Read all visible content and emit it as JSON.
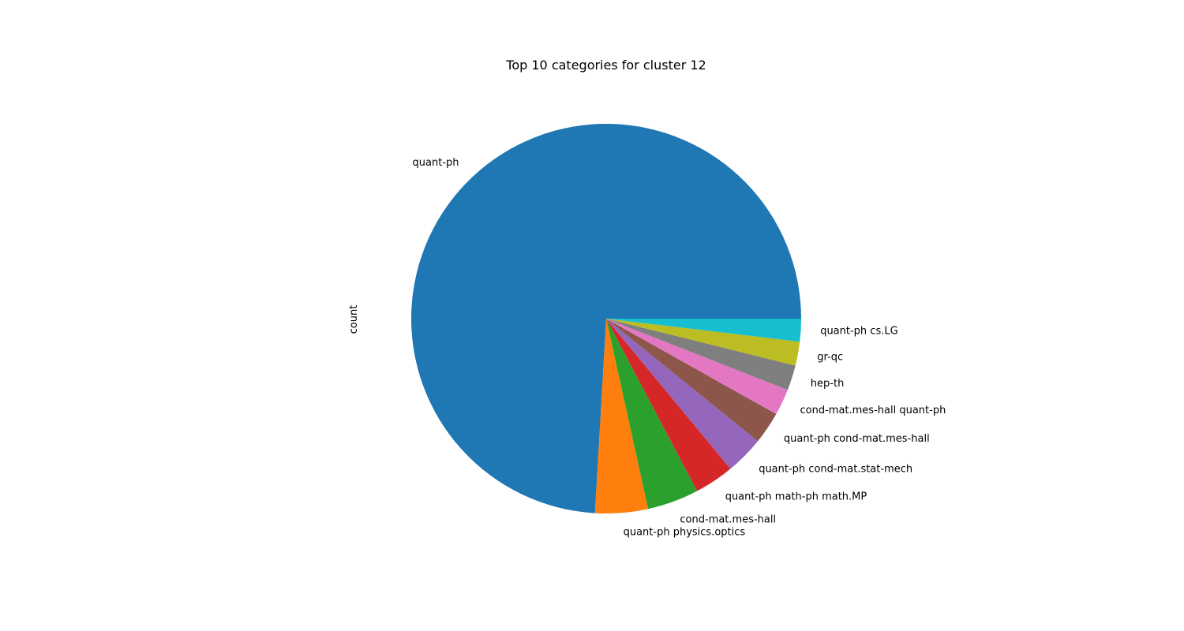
{
  "chart_data": {
    "type": "pie",
    "title": "Top 10 categories for cluster 12",
    "ylabel": "count",
    "start_angle_deg": 0,
    "direction": "counterclockwise",
    "slices": [
      {
        "label": "quant-ph",
        "value": 746,
        "color": "#1f77b4"
      },
      {
        "label": "quant-ph physics.optics",
        "value": 44,
        "color": "#ff7f0e"
      },
      {
        "label": "cond-mat.mes-hall",
        "value": 43,
        "color": "#2ca02c"
      },
      {
        "label": "quant-ph math-ph math.MP",
        "value": 33,
        "color": "#d62728"
      },
      {
        "label": "quant-ph cond-mat.stat-mech",
        "value": 32,
        "color": "#9467bd"
      },
      {
        "label": "quant-ph cond-mat.mes-hall",
        "value": 27,
        "color": "#8c564b"
      },
      {
        "label": "cond-mat.mes-hall quant-ph",
        "value": 22,
        "color": "#e377c2"
      },
      {
        "label": "hep-th",
        "value": 21,
        "color": "#7f7f7f"
      },
      {
        "label": "gr-qc",
        "value": 20,
        "color": "#bcbd22"
      },
      {
        "label": "quant-ph cs.LG",
        "value": 19,
        "color": "#17becf"
      }
    ]
  }
}
